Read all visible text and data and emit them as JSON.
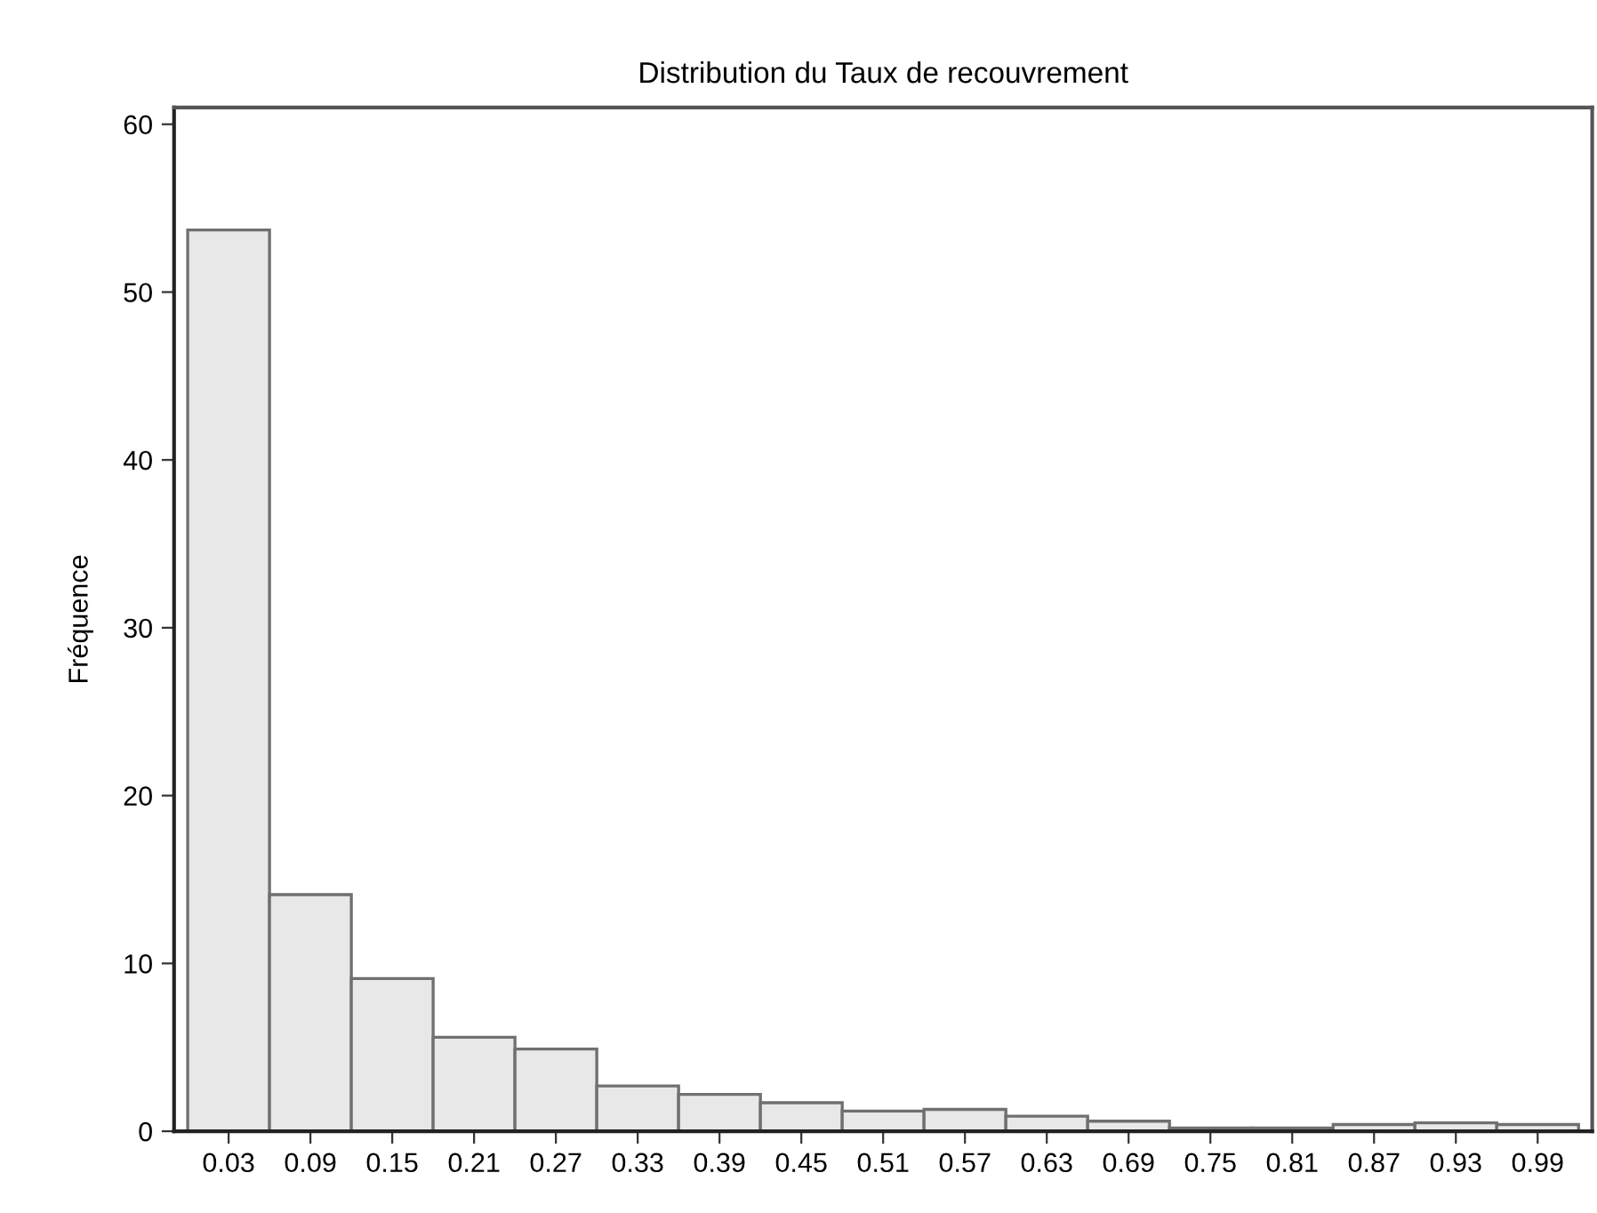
{
  "chart_data": {
    "type": "histogram",
    "title": "Distribution du Taux de recouvrement",
    "ylabel": "Fréquence",
    "bins": [
      0,
      0.06,
      0.12,
      0.18,
      0.24,
      0.3,
      0.36,
      0.42,
      0.48,
      0.54,
      0.6,
      0.66,
      0.72,
      0.78,
      0.84,
      0.9,
      0.96,
      1.02
    ],
    "values": [
      53.7,
      14.1,
      9.1,
      5.6,
      4.9,
      2.7,
      2.2,
      1.7,
      1.2,
      1.3,
      0.9,
      0.6,
      0.2,
      0.2,
      0.4,
      0.5,
      0.4
    ],
    "color": "#e8e8e8",
    "xlim": [
      -0.01,
      1.03
    ],
    "xticks": [
      0.03,
      0.09,
      0.15,
      0.21,
      0.27,
      0.33,
      0.39,
      0.45,
      0.51,
      0.57,
      0.63,
      0.69,
      0.75,
      0.81,
      0.87,
      0.93,
      0.99
    ],
    "ylim": [
      0,
      61
    ],
    "yticks": [
      0,
      10,
      20,
      30,
      40,
      50,
      60
    ],
    "grid": false
  }
}
